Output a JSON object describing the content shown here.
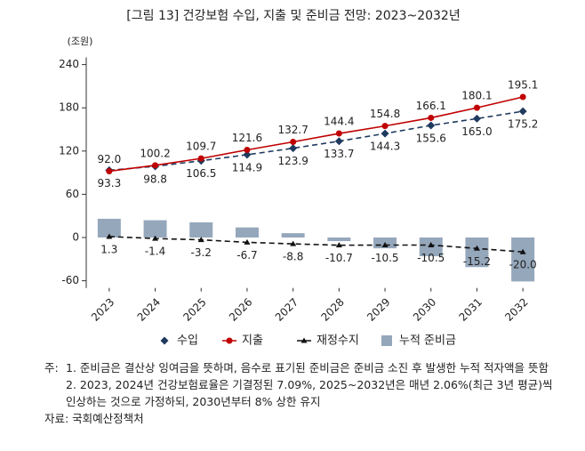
{
  "chart_data": {
    "type": "combo",
    "title": "[그림 13] 건강보험 수입, 지출 및 준비금 전망: 2023~2032년",
    "unit": "(조원)",
    "categories": [
      "2023",
      "2024",
      "2025",
      "2026",
      "2027",
      "2028",
      "2029",
      "2030",
      "2031",
      "2032"
    ],
    "ylim": [
      -70,
      250
    ],
    "yticks": [
      -60,
      0,
      60,
      120,
      180,
      240
    ],
    "grid": false,
    "legend": "bottom",
    "series": [
      {
        "name": "수입",
        "type": "line",
        "color": "#1f3a5f",
        "marker": "diamond",
        "dashed": true,
        "label_position": "below",
        "values": [
          93.3,
          98.8,
          106.5,
          114.9,
          123.9,
          133.7,
          144.3,
          155.6,
          165.0,
          175.2
        ],
        "value_labels": [
          "93.3",
          "98.8",
          "106.5",
          "114.9",
          "123.9",
          "133.7",
          "144.3",
          "155.6",
          "165.0",
          "175.2"
        ]
      },
      {
        "name": "지출",
        "type": "line",
        "color": "#c00000",
        "marker": "circle",
        "dashed": false,
        "label_position": "above",
        "values": [
          92.0,
          100.2,
          109.7,
          121.6,
          132.7,
          144.4,
          154.8,
          166.1,
          180.1,
          195.1
        ],
        "value_labels": [
          "92.0",
          "100.2",
          "109.7",
          "121.6",
          "132.7",
          "144.4",
          "154.8",
          "166.1",
          "180.1",
          "195.1"
        ]
      },
      {
        "name": "재정수지",
        "type": "line",
        "color": "#111111",
        "marker": "triangle",
        "dashed": true,
        "label_position": "below",
        "values": [
          1.3,
          -1.4,
          -3.2,
          -6.7,
          -8.8,
          -10.7,
          -10.5,
          -10.5,
          -15.2,
          -20.0
        ],
        "value_labels": [
          "1.3",
          "-1.4",
          "-3.2",
          "-6.7",
          "-8.8",
          "-10.7",
          "-10.5",
          "-10.5",
          "-15.2",
          "-20.0"
        ]
      },
      {
        "name": "누적 준비금",
        "type": "bar",
        "color": "#95a7bb",
        "values": [
          26,
          24,
          21,
          14,
          6,
          -5,
          -15,
          -26,
          -41,
          -61
        ]
      }
    ]
  },
  "notes_label": "주:",
  "notes": [
    "1. 준비금은 결산상 잉여금을 뜻하며, 음수로 표기된 준비금은 준비금 소진 후 발생한 누적 적자액을 뜻함",
    "2. 2023, 2024년 건강보험료율은 기결정된 7.09%, 2025~2032년은 매년 2.06%(최근 3년 평균)씩 인상하는 것으로 가정하되, 2030년부터 8% 상한 유지"
  ],
  "source": "자료: 국회예산정책처"
}
